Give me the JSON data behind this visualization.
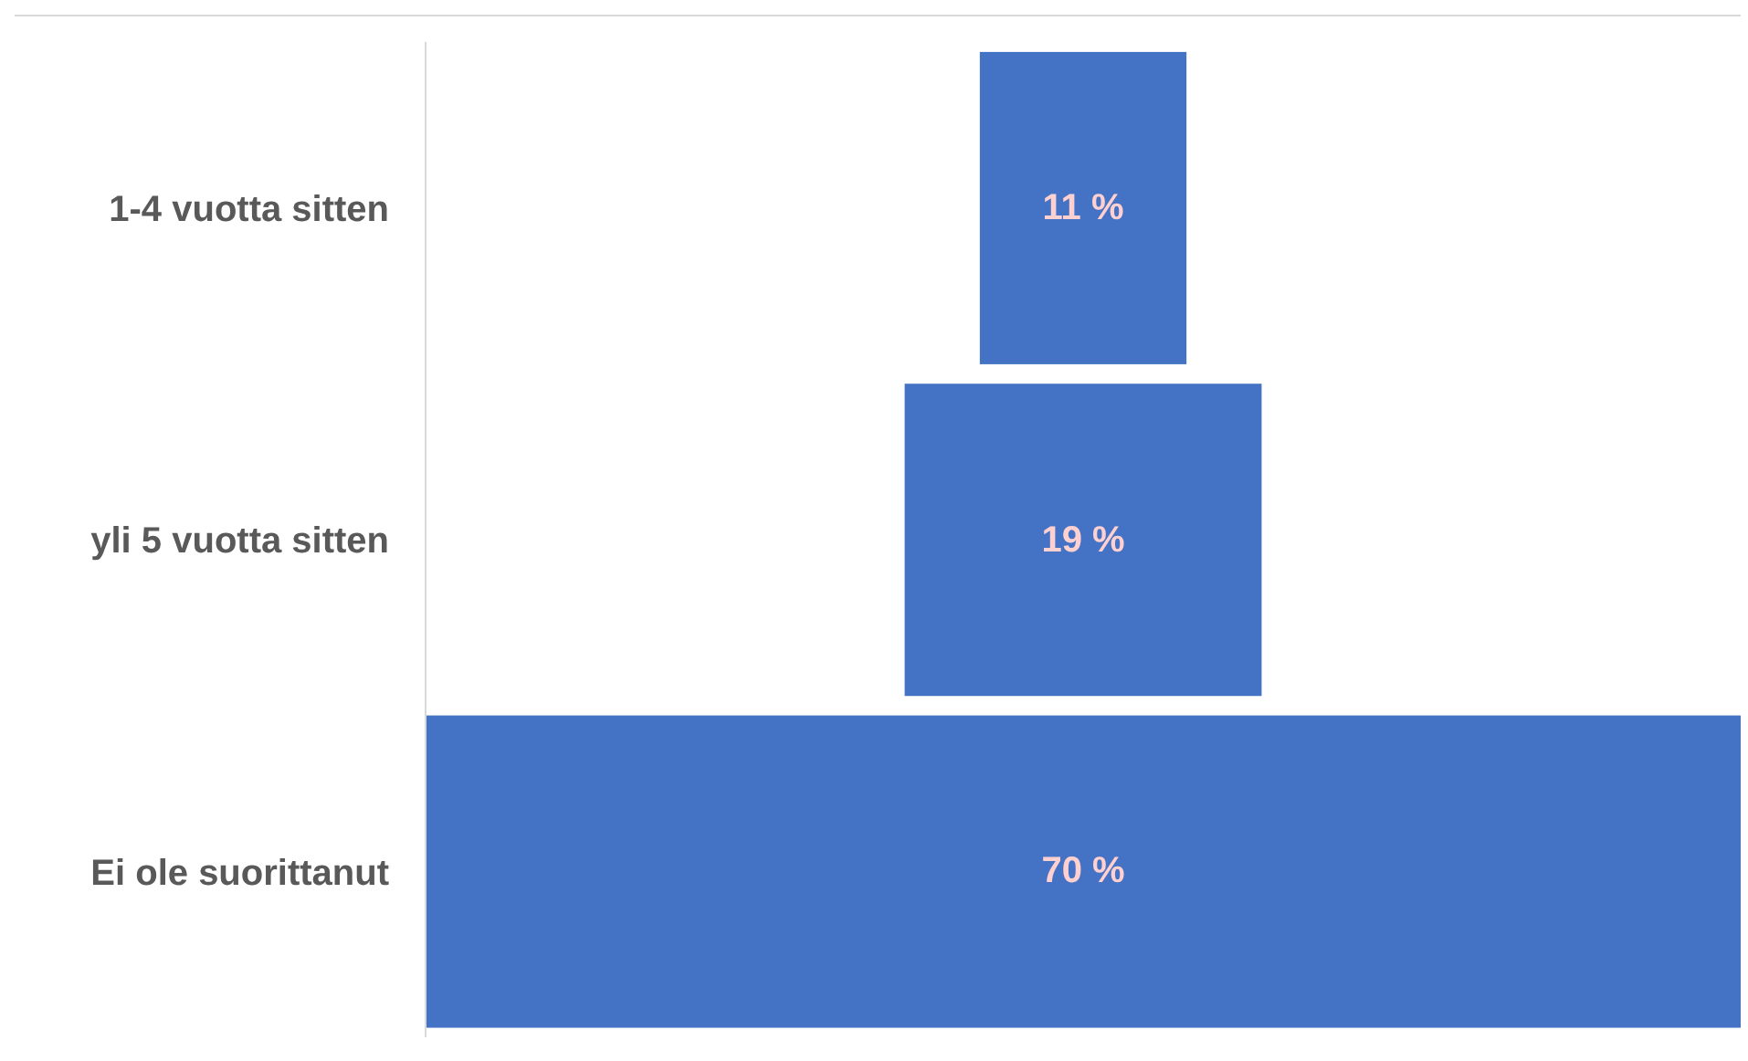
{
  "chart_data": {
    "type": "other",
    "categories": [
      "1-4 vuotta sitten",
      "yli 5 vuotta sitten",
      "Ei ole suorittanut"
    ],
    "values": [
      11,
      19,
      70
    ],
    "value_labels": [
      "11 %",
      "19 %",
      "70 %"
    ],
    "color": "#4472c4"
  }
}
